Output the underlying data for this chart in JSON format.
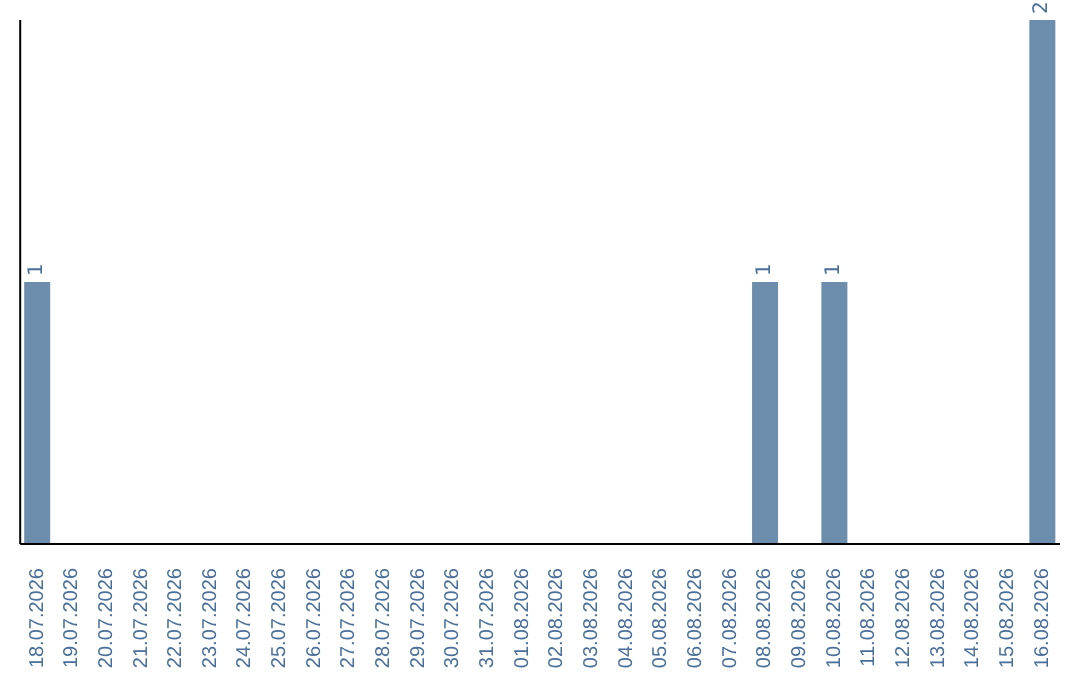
{
  "chart_data": {
    "type": "bar",
    "categories": [
      "18.07.2026",
      "19.07.2026",
      "20.07.2026",
      "21.07.2026",
      "22.07.2026",
      "23.07.2026",
      "24.07.2026",
      "25.07.2026",
      "26.07.2026",
      "27.07.2026",
      "28.07.2026",
      "29.07.2026",
      "30.07.2026",
      "31.07.2026",
      "01.08.2026",
      "02.08.2026",
      "03.08.2026",
      "04.08.2026",
      "05.08.2026",
      "06.08.2026",
      "07.08.2026",
      "08.08.2026",
      "09.08.2026",
      "10.08.2026",
      "11.08.2026",
      "12.08.2026",
      "13.08.2026",
      "14.08.2026",
      "15.08.2026",
      "16.08.2026"
    ],
    "values": [
      1,
      0,
      0,
      0,
      0,
      0,
      0,
      0,
      0,
      0,
      0,
      0,
      0,
      0,
      0,
      0,
      0,
      0,
      0,
      0,
      0,
      1,
      0,
      1,
      0,
      0,
      0,
      0,
      0,
      2
    ],
    "value_labels": [
      "1",
      null,
      null,
      null,
      null,
      null,
      null,
      null,
      null,
      null,
      null,
      null,
      null,
      null,
      null,
      null,
      null,
      null,
      null,
      null,
      null,
      "1",
      null,
      "1",
      null,
      null,
      null,
      null,
      null,
      "2"
    ],
    "color": "#6d8dad",
    "grid": false,
    "legend": false
  }
}
